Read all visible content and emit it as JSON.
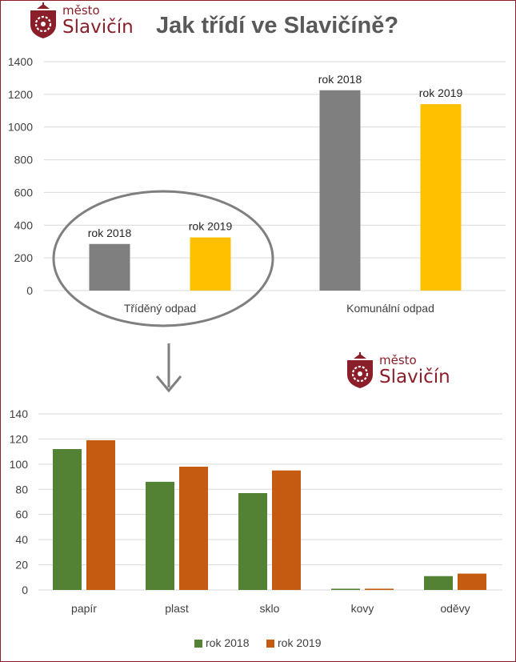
{
  "header": {
    "title": "Jak třídí ve Slavičíně?",
    "logo_small": "město",
    "logo_big": "Slavičín"
  },
  "colors": {
    "gray": "#7f7f7f",
    "yellow": "#ffc000",
    "green": "#548235",
    "orange": "#c55a11",
    "brand": "#8a1f2a"
  },
  "chart_data": [
    {
      "type": "bar",
      "categories": [
        "Tříděný odpad",
        "Komunální odpad"
      ],
      "series": [
        {
          "name": "rok 2018",
          "values": [
            285,
            1225
          ]
        },
        {
          "name": "rok 2019",
          "values": [
            325,
            1140
          ]
        }
      ],
      "ylim": [
        0,
        1400
      ],
      "yticks": [
        0,
        200,
        400,
        600,
        800,
        1000,
        1200,
        1400
      ],
      "grid": true,
      "data_labels": "series-name-above-bar",
      "annotation": "ellipse-callout-on-first-category"
    },
    {
      "type": "bar",
      "categories": [
        "papír",
        "plast",
        "sklo",
        "kovy",
        "oděvy"
      ],
      "series": [
        {
          "name": "rok 2018",
          "values": [
            112,
            86,
            77,
            1,
            11
          ]
        },
        {
          "name": "rok 2019",
          "values": [
            119,
            98,
            95,
            1,
            13
          ]
        }
      ],
      "ylim": [
        0,
        140
      ],
      "yticks": [
        0,
        20,
        40,
        60,
        80,
        100,
        120,
        140
      ],
      "grid": true,
      "legend": "bottom"
    }
  ]
}
